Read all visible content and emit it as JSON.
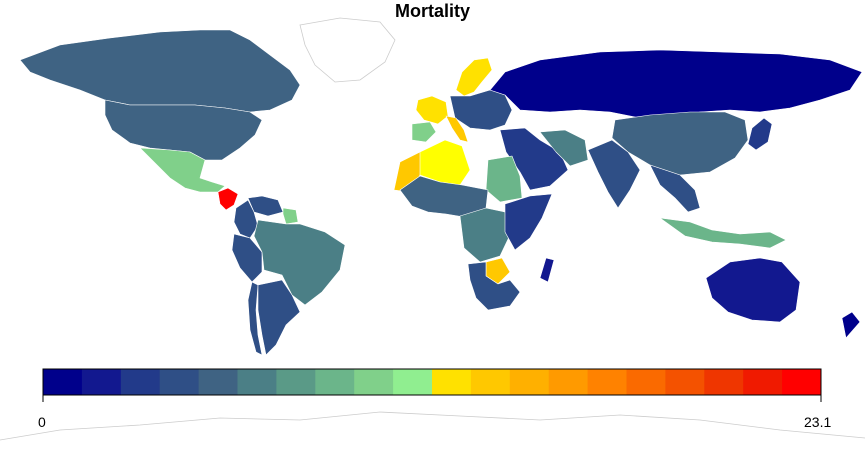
{
  "title": "Mortality",
  "legend": {
    "min_label": "0",
    "max_label": "23.1",
    "min_value": 0,
    "max_value": 23.1,
    "palette": [
      "#00008b",
      "#12188f",
      "#223a8a",
      "#2f4f86",
      "#3f6383",
      "#4b7f86",
      "#5a9a87",
      "#6bb58a",
      "#80d08a",
      "#90ee90",
      "#ffff00",
      "#ffe100",
      "#ffc800",
      "#ffb000",
      "#ff9a00",
      "#ff8200",
      "#fa6a00",
      "#f45200",
      "#ef3600",
      "#f01a00",
      "#ff0000"
    ]
  },
  "regions": [
    {
      "name": "Canada",
      "value": 5.0
    },
    {
      "name": "United States",
      "value": 5.0
    },
    {
      "name": "Mexico",
      "value": 9.0
    },
    {
      "name": "Central America",
      "value": 23.1
    },
    {
      "name": "Colombia",
      "value": 3.5
    },
    {
      "name": "Venezuela",
      "value": 3.0
    },
    {
      "name": "Guyana",
      "value": 9.0
    },
    {
      "name": "Brazil",
      "value": 6.0
    },
    {
      "name": "Peru",
      "value": 4.0
    },
    {
      "name": "Chile",
      "value": 4.0
    },
    {
      "name": "Argentina",
      "value": 3.5
    },
    {
      "name": "Greenland",
      "value": null
    },
    {
      "name": "Scandinavia",
      "value": 13.0
    },
    {
      "name": "France",
      "value": 13.0
    },
    {
      "name": "Italy",
      "value": 14.0
    },
    {
      "name": "Spain",
      "value": 9.0
    },
    {
      "name": "Eastern Europe",
      "value": 3.5
    },
    {
      "name": "Russia",
      "value": 0.0
    },
    {
      "name": "China",
      "value": 5.0
    },
    {
      "name": "Algeria",
      "value": 12.0
    },
    {
      "name": "Morocco",
      "value": 14.0
    },
    {
      "name": "West Africa",
      "value": 5.0
    },
    {
      "name": "Sudan",
      "value": 8.0
    },
    {
      "name": "Central Africa",
      "value": 6.0
    },
    {
      "name": "East Africa",
      "value": 2.5
    },
    {
      "name": "Zimbabwe",
      "value": 13.5
    },
    {
      "name": "Southern Africa",
      "value": 3.0
    },
    {
      "name": "Middle East",
      "value": 2.0
    },
    {
      "name": "Iran",
      "value": 6.0
    },
    {
      "name": "India",
      "value": 3.0
    },
    {
      "name": "Southeast Asia",
      "value": 3.0
    },
    {
      "name": "Indonesia",
      "value": 8.0
    },
    {
      "name": "Japan",
      "value": 2.0
    },
    {
      "name": "Australia",
      "value": 1.0
    },
    {
      "name": "New Zealand",
      "value": 0.5
    },
    {
      "name": "Madagascar",
      "value": 1.0
    }
  ]
}
